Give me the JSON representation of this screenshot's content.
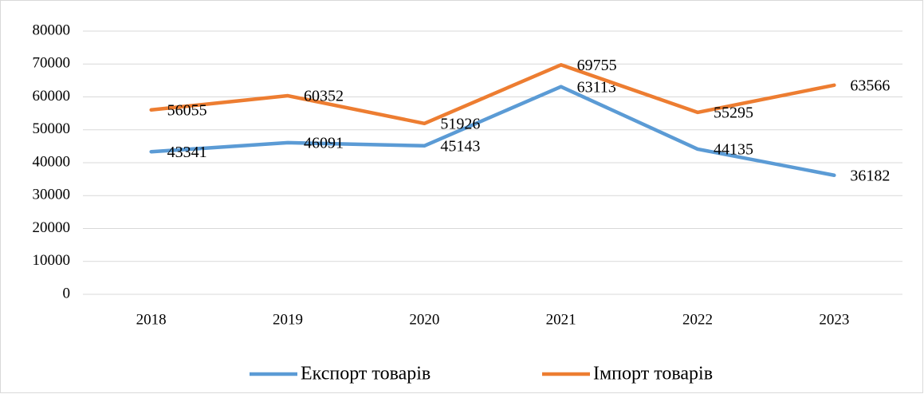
{
  "chart_data": {
    "type": "line",
    "categories": [
      "2018",
      "2019",
      "2020",
      "2021",
      "2022",
      "2023"
    ],
    "series": [
      {
        "name": "Експорт товарів",
        "color": "#5b9bd5",
        "values": [
          43341,
          46091,
          45143,
          63113,
          44135,
          36182
        ]
      },
      {
        "name": "Імпорт товарів",
        "color": "#ed7d31",
        "values": [
          56055,
          60352,
          51926,
          69755,
          55295,
          63566
        ]
      }
    ],
    "ylim": [
      0,
      80000
    ],
    "yticks": [
      0,
      10000,
      20000,
      30000,
      40000,
      50000,
      60000,
      70000,
      80000
    ],
    "grid": true,
    "legend": "bottom",
    "data_labels": true
  }
}
